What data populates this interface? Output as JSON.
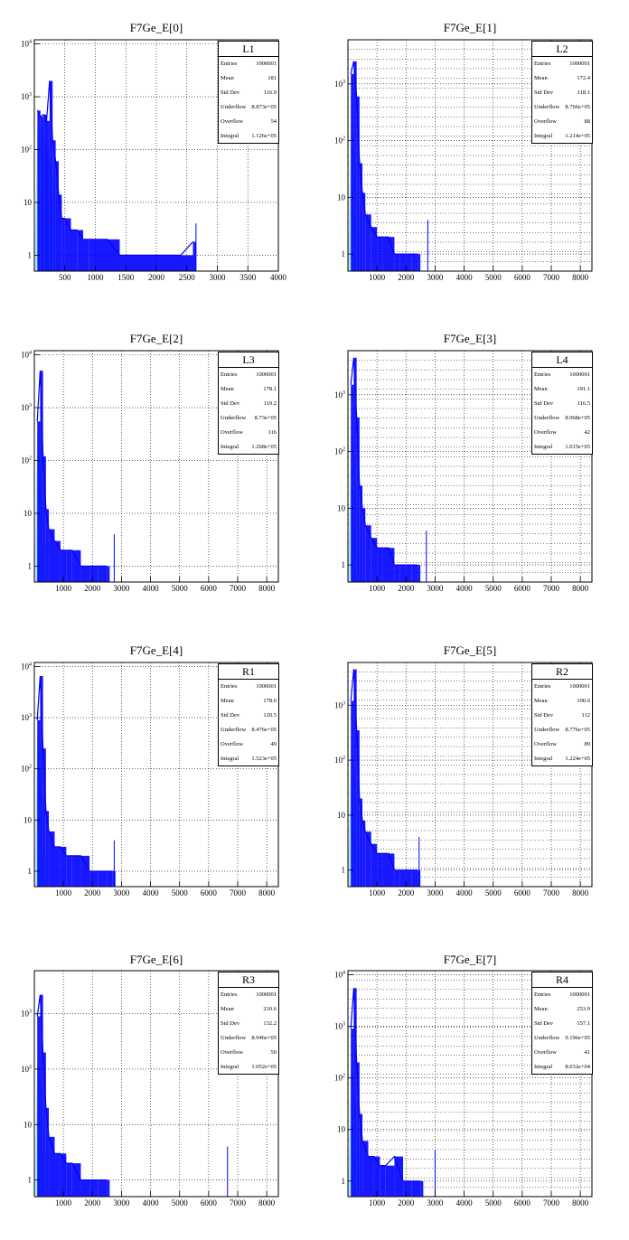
{
  "chart_data": [
    {
      "type": "bar",
      "title": "F7Ge_E[0]",
      "xlim": [
        0,
        4000
      ],
      "ylim": [
        0.5,
        12000
      ],
      "y_scale": "log",
      "x_ticks": [
        "500",
        "1000",
        "1500",
        "2000",
        "2500",
        "3000",
        "3500",
        "4000"
      ],
      "y_ticks": [
        "1",
        "10",
        "10^2",
        "10^3",
        "10^4"
      ],
      "grid": true,
      "stats": {
        "name": "L1",
        "entries": "1000001",
        "mean": "181",
        "std_dev": "116.9",
        "underflow": "8.873e+05",
        "overflow": "54",
        "integral": "1.126e+05"
      },
      "hist_blue": [
        [
          50,
          550
        ],
        [
          100,
          420
        ],
        [
          150,
          460
        ],
        [
          200,
          350
        ],
        [
          250,
          2000
        ],
        [
          300,
          150
        ],
        [
          350,
          60
        ],
        [
          400,
          14
        ],
        [
          450,
          5
        ],
        [
          500,
          5
        ],
        [
          600,
          3
        ],
        [
          700,
          3
        ],
        [
          800,
          2
        ],
        [
          900,
          2
        ],
        [
          1000,
          2
        ],
        [
          1200,
          2
        ],
        [
          1400,
          1
        ],
        [
          1600,
          1
        ],
        [
          1800,
          1
        ],
        [
          2000,
          1
        ],
        [
          2200,
          1
        ],
        [
          2400,
          1
        ],
        [
          2600,
          1.8
        ]
      ],
      "hist_cyan": [
        [
          50,
          350
        ],
        [
          100,
          230
        ],
        [
          150,
          180
        ],
        [
          200,
          120
        ],
        [
          250,
          60
        ],
        [
          300,
          30
        ],
        [
          350,
          15
        ],
        [
          400,
          3
        ]
      ],
      "spike_x": 2650
    },
    {
      "type": "bar",
      "title": "F7Ge_E[1]",
      "xlim": [
        0,
        8400
      ],
      "ylim": [
        0.5,
        6000
      ],
      "y_scale": "log",
      "x_ticks": [
        "1000",
        "2000",
        "3000",
        "4000",
        "5000",
        "6000",
        "7000",
        "8000"
      ],
      "y_ticks": [
        "1",
        "10",
        "10^2",
        "10^3"
      ],
      "grid": true,
      "stats": {
        "name": "L2",
        "entries": "1000001",
        "mean": "172.4",
        "std_dev": "118.1",
        "underflow": "8.766e+05",
        "overflow": "88",
        "integral": "1.214e+05"
      },
      "hist_blue": [
        [
          100,
          1500
        ],
        [
          200,
          2500
        ],
        [
          300,
          600
        ],
        [
          400,
          40
        ],
        [
          500,
          12
        ],
        [
          600,
          5
        ],
        [
          800,
          3
        ],
        [
          1000,
          2
        ],
        [
          1200,
          2
        ],
        [
          1400,
          2
        ],
        [
          1600,
          1
        ],
        [
          1800,
          1
        ],
        [
          2000,
          1
        ],
        [
          2200,
          1
        ],
        [
          2400,
          1
        ]
      ],
      "hist_cyan": [
        [
          100,
          200
        ],
        [
          200,
          100
        ],
        [
          300,
          20
        ],
        [
          400,
          3
        ]
      ],
      "spike_x": 2750
    },
    {
      "type": "bar",
      "title": "F7Ge_E[2]",
      "xlim": [
        0,
        8400
      ],
      "ylim": [
        0.5,
        12000
      ],
      "y_scale": "log",
      "x_ticks": [
        "1000",
        "2000",
        "3000",
        "4000",
        "5000",
        "6000",
        "7000",
        "8000"
      ],
      "y_ticks": [
        "1",
        "10",
        "10^2",
        "10^3",
        "10^4"
      ],
      "grid": true,
      "stats": {
        "name": "L3",
        "entries": "1000001",
        "mean": "178.1",
        "std_dev": "119.2",
        "underflow": "8.73e+05",
        "overflow": "116",
        "integral": "1.268e+05"
      },
      "hist_blue": [
        [
          100,
          550
        ],
        [
          200,
          5000
        ],
        [
          300,
          120
        ],
        [
          400,
          12
        ],
        [
          500,
          5
        ],
        [
          700,
          3
        ],
        [
          900,
          2
        ],
        [
          1100,
          2
        ],
        [
          1300,
          2
        ],
        [
          1600,
          1
        ],
        [
          1900,
          1
        ],
        [
          2200,
          1
        ],
        [
          2500,
          1
        ]
      ],
      "hist_cyan": [
        [
          100,
          350
        ],
        [
          200,
          80
        ],
        [
          300,
          15
        ],
        [
          400,
          2
        ]
      ],
      "spike_x": 2750
    },
    {
      "type": "bar",
      "title": "F7Ge_E[3]",
      "xlim": [
        0,
        8400
      ],
      "ylim": [
        0.5,
        6000
      ],
      "y_scale": "log",
      "x_ticks": [
        "1000",
        "2000",
        "3000",
        "4000",
        "5000",
        "6000",
        "7000",
        "8000"
      ],
      "y_ticks": [
        "1",
        "10",
        "10^2",
        "10^3"
      ],
      "grid": true,
      "stats": {
        "name": "L4",
        "entries": "1000001",
        "mean": "191.1",
        "std_dev": "116.5",
        "underflow": "8.968e+05",
        "overflow": "42",
        "integral": "1.015e+05"
      },
      "hist_blue": [
        [
          100,
          1500
        ],
        [
          200,
          4500
        ],
        [
          300,
          400
        ],
        [
          400,
          25
        ],
        [
          500,
          10
        ],
        [
          600,
          5
        ],
        [
          800,
          3
        ],
        [
          1000,
          2
        ],
        [
          1200,
          2
        ],
        [
          1400,
          2
        ],
        [
          1600,
          1
        ],
        [
          1800,
          1
        ],
        [
          2000,
          1
        ],
        [
          2200,
          1
        ],
        [
          2400,
          1
        ]
      ],
      "hist_cyan": [
        [
          100,
          180
        ],
        [
          200,
          90
        ],
        [
          300,
          20
        ],
        [
          400,
          3
        ]
      ],
      "spike_x": 2700
    },
    {
      "type": "bar",
      "title": "F7Ge_E[4]",
      "xlim": [
        0,
        8400
      ],
      "ylim": [
        0.5,
        12000
      ],
      "y_scale": "log",
      "x_ticks": [
        "1000",
        "2000",
        "3000",
        "4000",
        "5000",
        "6000",
        "7000",
        "8000"
      ],
      "y_ticks": [
        "1",
        "10",
        "10^2",
        "10^3",
        "10^4"
      ],
      "grid": true,
      "stats": {
        "name": "R1",
        "entries": "1000001",
        "mean": "178.6",
        "std_dev": "120.5",
        "underflow": "8.476e+05",
        "overflow": "49",
        "integral": "1.523e+05"
      },
      "hist_blue": [
        [
          100,
          900
        ],
        [
          200,
          6500
        ],
        [
          300,
          250
        ],
        [
          400,
          15
        ],
        [
          500,
          6
        ],
        [
          700,
          3
        ],
        [
          900,
          3
        ],
        [
          1100,
          2
        ],
        [
          1300,
          2
        ],
        [
          1600,
          2
        ],
        [
          1900,
          1
        ],
        [
          2200,
          1
        ],
        [
          2500,
          1
        ],
        [
          2700,
          1
        ]
      ],
      "hist_cyan": [
        [
          100,
          500
        ],
        [
          200,
          100
        ],
        [
          300,
          20
        ],
        [
          400,
          2
        ]
      ],
      "spike_x": 2750
    },
    {
      "type": "bar",
      "title": "F7Ge_E[5]",
      "xlim": [
        0,
        8400
      ],
      "ylim": [
        0.5,
        6000
      ],
      "y_scale": "log",
      "x_ticks": [
        "1000",
        "2000",
        "3000",
        "4000",
        "5000",
        "6000",
        "7000",
        "8000"
      ],
      "y_ticks": [
        "1",
        "10",
        "10^2",
        "10^3"
      ],
      "grid": true,
      "stats": {
        "name": "R2",
        "entries": "1000001",
        "mean": "190.6",
        "std_dev": "112",
        "underflow": "8.776e+05",
        "overflow": "89",
        "integral": "1.224e+05"
      },
      "hist_blue": [
        [
          100,
          1200
        ],
        [
          200,
          4500
        ],
        [
          300,
          350
        ],
        [
          400,
          20
        ],
        [
          500,
          8
        ],
        [
          600,
          5
        ],
        [
          800,
          3
        ],
        [
          1000,
          2
        ],
        [
          1200,
          2
        ],
        [
          1400,
          2
        ],
        [
          1600,
          1
        ],
        [
          1800,
          1
        ],
        [
          2000,
          1
        ],
        [
          2200,
          1
        ],
        [
          2400,
          1
        ]
      ],
      "hist_cyan": [
        [
          100,
          200
        ],
        [
          200,
          100
        ],
        [
          300,
          20
        ],
        [
          400,
          3
        ]
      ],
      "spike_x": 2450
    },
    {
      "type": "bar",
      "title": "F7Ge_E[6]",
      "xlim": [
        0,
        8400
      ],
      "ylim": [
        0.5,
        6000
      ],
      "y_scale": "log",
      "x_ticks": [
        "1000",
        "2000",
        "3000",
        "4000",
        "5000",
        "6000",
        "7000",
        "8000"
      ],
      "y_ticks": [
        "1",
        "10",
        "10^2",
        "10^3"
      ],
      "grid": true,
      "stats": {
        "name": "R3",
        "entries": "1000001",
        "mean": "210.6",
        "std_dev": "132.2",
        "underflow": "8.946e+05",
        "overflow": "50",
        "integral": "1.052e+05"
      },
      "hist_blue": [
        [
          100,
          900
        ],
        [
          200,
          2200
        ],
        [
          300,
          200
        ],
        [
          400,
          20
        ],
        [
          500,
          6
        ],
        [
          700,
          3
        ],
        [
          900,
          3
        ],
        [
          1100,
          2
        ],
        [
          1300,
          2
        ],
        [
          1600,
          1
        ],
        [
          1900,
          1
        ],
        [
          2200,
          1
        ],
        [
          2500,
          1
        ]
      ],
      "hist_cyan": [
        [
          100,
          150
        ],
        [
          200,
          60
        ],
        [
          300,
          15
        ],
        [
          400,
          3
        ]
      ],
      "spike_x": 6650
    },
    {
      "type": "bar",
      "title": "F7Ge_E[7]",
      "xlim": [
        0,
        8400
      ],
      "ylim": [
        0.5,
        12000
      ],
      "y_scale": "log",
      "x_ticks": [
        "1000",
        "2000",
        "3000",
        "4000",
        "5000",
        "6000",
        "7000",
        "8000"
      ],
      "y_ticks": [
        "1",
        "10",
        "10^2",
        "10^3",
        "10^4"
      ],
      "grid": true,
      "stats": {
        "name": "R4",
        "entries": "1000001",
        "mean": "253.9",
        "std_dev": "157.1",
        "underflow": "9.196e+05",
        "overflow": "41",
        "integral": "8.032e+04"
      },
      "hist_blue": [
        [
          100,
          900
        ],
        [
          200,
          5500
        ],
        [
          300,
          200
        ],
        [
          400,
          20
        ],
        [
          500,
          6
        ],
        [
          700,
          3
        ],
        [
          900,
          3
        ],
        [
          1100,
          2
        ],
        [
          1300,
          2
        ],
        [
          1600,
          3
        ],
        [
          1900,
          1
        ],
        [
          2200,
          1
        ],
        [
          2500,
          1
        ]
      ],
      "hist_cyan": [
        [
          100,
          200
        ],
        [
          200,
          80
        ],
        [
          300,
          15
        ],
        [
          400,
          2
        ]
      ],
      "spike_x": 3000
    }
  ],
  "labels": {
    "entries": "Entries",
    "mean": "Mean",
    "std_dev": "Std Dev",
    "underflow": "Underflow",
    "overflow": "Overflow",
    "integral": "Integral"
  },
  "colors": {
    "blue": "#0000ff",
    "cyan": "#aee8ee",
    "axis": "#000000"
  }
}
